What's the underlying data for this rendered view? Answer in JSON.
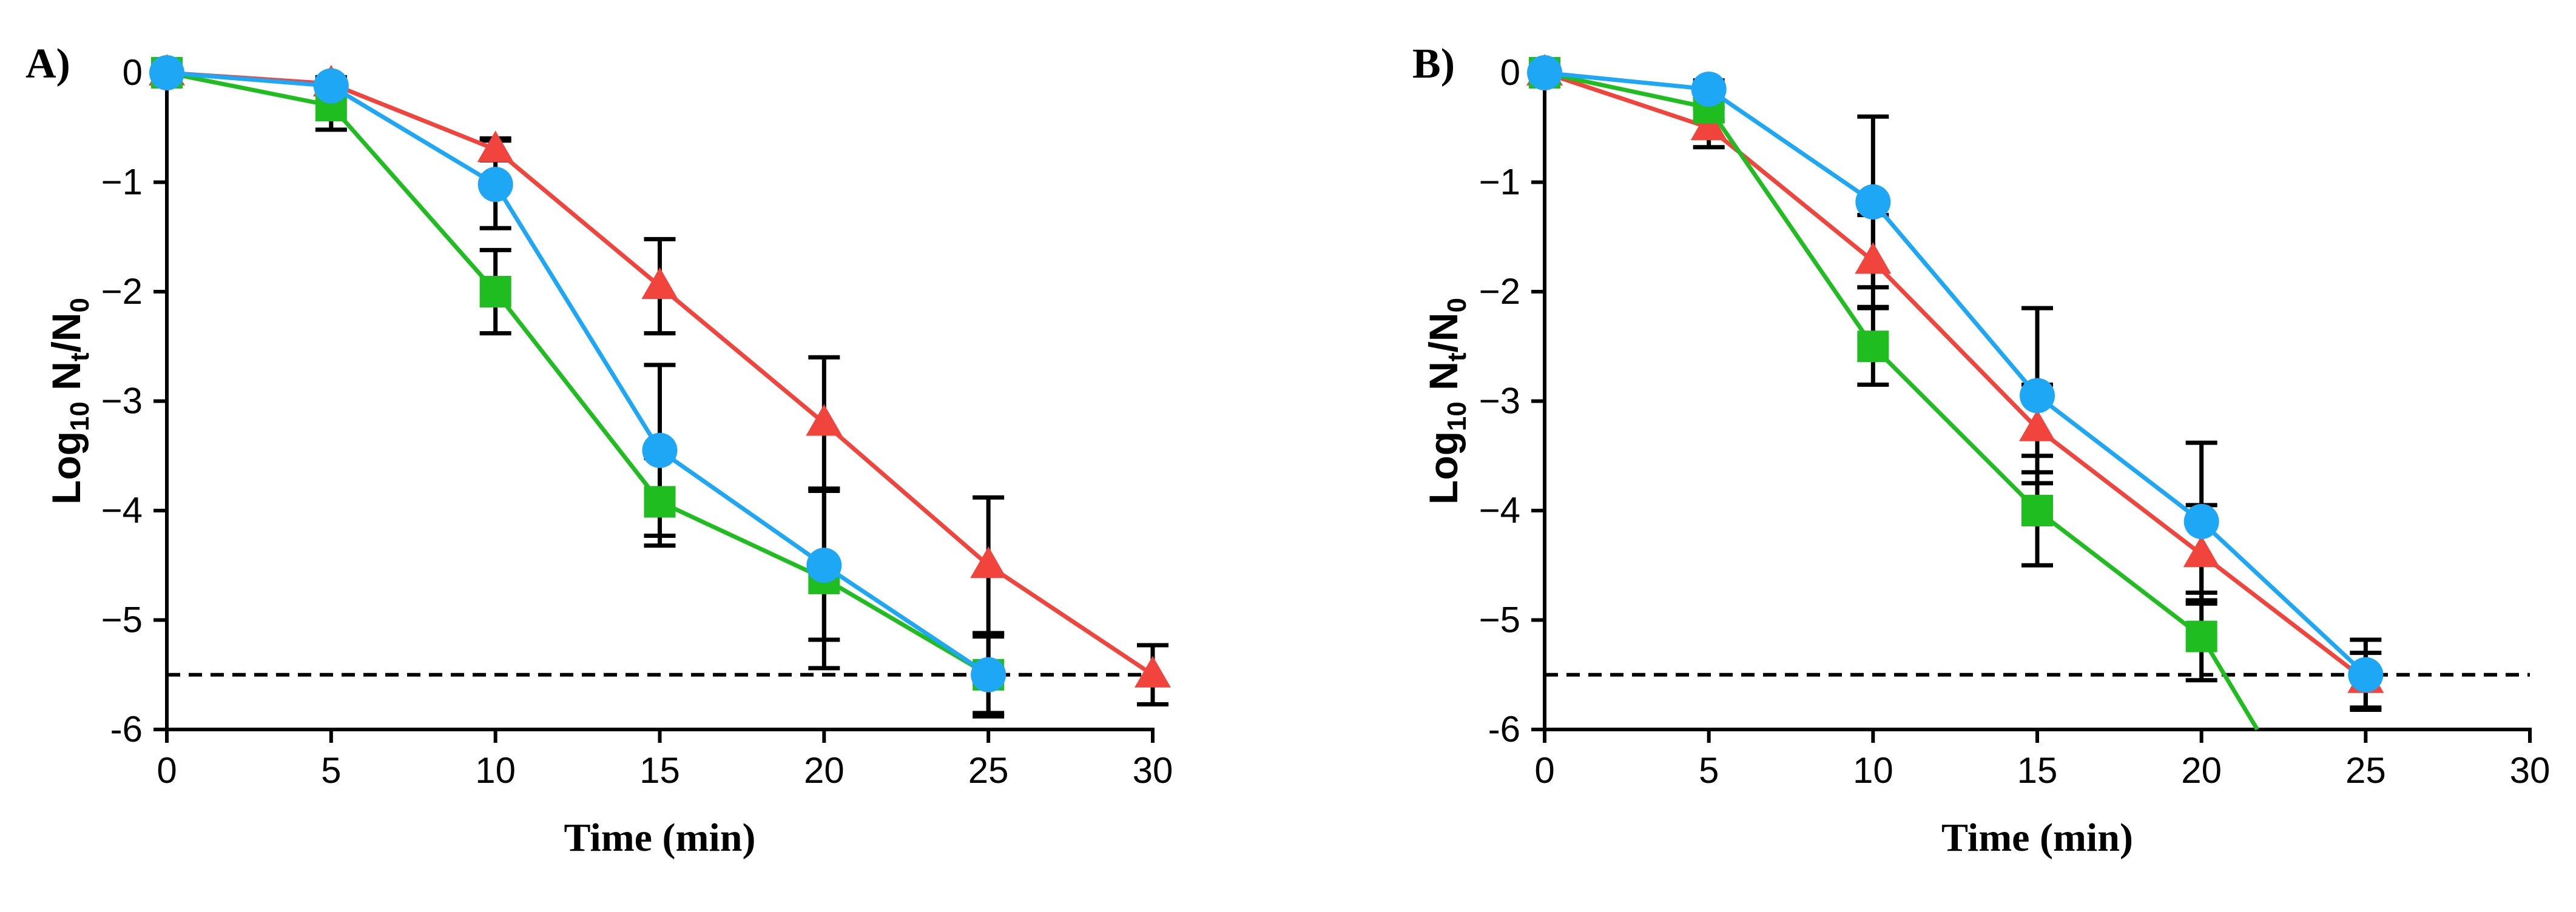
{
  "chart_data": [
    {
      "type": "line",
      "panel_label": "A)",
      "title": "",
      "xlabel": "Time (min)",
      "ylabel": "Log10 Nt/N0",
      "ylabel_parts": {
        "base": "Log",
        "base_sub": "10",
        "n1": " N",
        "n1_sub": "t",
        "sep": "/N",
        "n2_sub": "0"
      },
      "xlim": [
        0,
        30
      ],
      "ylim": [
        -6,
        0
      ],
      "x_ticks": [
        0,
        5,
        10,
        15,
        20,
        25,
        30
      ],
      "x_tick_labels": [
        "0",
        "5",
        "10",
        "15",
        "20",
        "25",
        "30"
      ],
      "y_ticks": [
        0,
        -1,
        -2,
        -3,
        -4,
        -5,
        -6
      ],
      "y_tick_labels": [
        "0",
        "−1",
        "−2",
        "−3",
        "−4",
        "−5",
        "-6"
      ],
      "detection_limit": -5.5,
      "grid": false,
      "series": [
        {
          "name": "red-triangle",
          "color": "#f0443c",
          "marker": "triangle",
          "x": [
            0,
            5,
            10,
            15,
            20,
            25,
            30
          ],
          "values": [
            0,
            -0.1,
            -0.7,
            -1.95,
            -3.2,
            -4.5,
            -5.5
          ],
          "errors": [
            0,
            0.05,
            0.1,
            0.43,
            0.6,
            0.62,
            0.27
          ]
        },
        {
          "name": "green-square",
          "color": "#1fbd1f",
          "marker": "square",
          "x": [
            0,
            5,
            10,
            15,
            20,
            25
          ],
          "values": [
            0,
            -0.3,
            -2.0,
            -3.92,
            -4.62,
            -5.5
          ],
          "errors": [
            0,
            0.22,
            0.38,
            0.4,
            0.82,
            0.35
          ]
        },
        {
          "name": "blue-circle",
          "color": "#1ea7f5",
          "marker": "circle",
          "x": [
            0,
            5,
            10,
            15,
            20,
            25
          ],
          "values": [
            0,
            -0.12,
            -1.02,
            -3.45,
            -4.5,
            -5.5
          ],
          "errors": [
            0,
            0.08,
            0.4,
            0.78,
            0.68,
            0.38
          ]
        }
      ]
    },
    {
      "type": "line",
      "panel_label": "B)",
      "title": "",
      "xlabel": "Time (min)",
      "ylabel": "Log10 Nt/N0",
      "ylabel_parts": {
        "base": "Log",
        "base_sub": "10",
        "n1": " N",
        "n1_sub": "t",
        "sep": "/N",
        "n2_sub": "0"
      },
      "xlim": [
        0,
        30
      ],
      "ylim": [
        -6,
        0
      ],
      "x_ticks": [
        0,
        5,
        10,
        15,
        20,
        25,
        30
      ],
      "x_tick_labels": [
        "0",
        "5",
        "10",
        "15",
        "20",
        "25",
        "30"
      ],
      "y_ticks": [
        0,
        -1,
        -2,
        -3,
        -4,
        -5,
        -6
      ],
      "y_tick_labels": [
        "0",
        "−1",
        "−2",
        "−3",
        "−4",
        "−5",
        "-6"
      ],
      "detection_limit": -5.5,
      "grid": false,
      "series": [
        {
          "name": "red-triangle",
          "color": "#f0443c",
          "marker": "triangle",
          "x": [
            0,
            5,
            10,
            15,
            20,
            25
          ],
          "values": [
            0,
            -0.5,
            -1.72,
            -3.25,
            -4.4,
            -5.55
          ],
          "errors": [
            0,
            0.18,
            0.42,
            0.4,
            0.45,
            0.25
          ]
        },
        {
          "name": "green-square",
          "color": "#1fbd1f",
          "marker": "square",
          "x": [
            0,
            5,
            10,
            15,
            20,
            21.7
          ],
          "values": [
            0,
            -0.32,
            -2.5,
            -4.0,
            -5.15,
            -6.0
          ],
          "errors": [
            0,
            0.12,
            0.35,
            0.5,
            0.4,
            0
          ],
          "hidden_markers": [
            5
          ]
        },
        {
          "name": "blue-circle",
          "color": "#1ea7f5",
          "marker": "circle",
          "x": [
            0,
            5,
            10,
            15,
            20,
            25
          ],
          "values": [
            0,
            -0.15,
            -1.18,
            -2.95,
            -4.1,
            -5.5
          ],
          "errors": [
            0,
            0.08,
            0.78,
            0.8,
            0.72,
            0.32
          ]
        }
      ]
    }
  ]
}
